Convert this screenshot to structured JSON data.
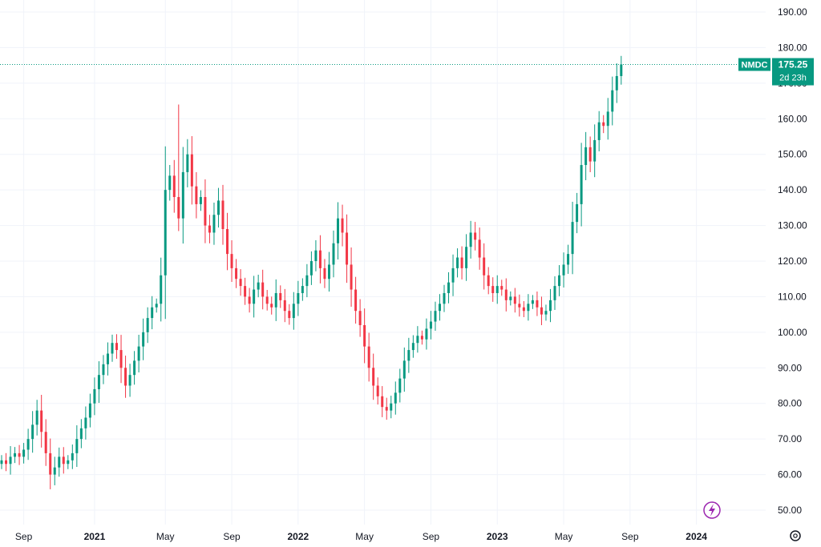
{
  "chart_data": {
    "type": "candlestick",
    "ylim": [
      45,
      195
    ],
    "y_ticks": [
      "190.00",
      "180.00",
      "170.00",
      "160.00",
      "150.00",
      "140.00",
      "130.00",
      "120.00",
      "110.00",
      "100.00",
      "90.00",
      "80.00",
      "70.00",
      "60.00",
      "50.00"
    ],
    "x_ticks": [
      {
        "label": "Sep",
        "bold": false,
        "bar": 5
      },
      {
        "label": "2021",
        "bold": true,
        "bar": 21
      },
      {
        "label": "May",
        "bold": false,
        "bar": 37
      },
      {
        "label": "Sep",
        "bold": false,
        "bar": 52
      },
      {
        "label": "2022",
        "bold": true,
        "bar": 67
      },
      {
        "label": "May",
        "bold": false,
        "bar": 82
      },
      {
        "label": "Sep",
        "bold": false,
        "bar": 97
      },
      {
        "label": "2023",
        "bold": true,
        "bar": 112
      },
      {
        "label": "May",
        "bold": false,
        "bar": 127
      },
      {
        "label": "Sep",
        "bold": false,
        "bar": 142
      },
      {
        "label": "2024",
        "bold": true,
        "bar": 157
      }
    ],
    "symbol_label": "NMDC",
    "last_price": "175.25",
    "countdown": "2d 23h",
    "up_color": "#089981",
    "down_color": "#f23645",
    "closes": [
      64,
      63,
      65,
      66,
      65,
      67,
      70,
      74,
      78,
      72,
      66,
      60,
      62,
      65,
      63,
      64,
      66,
      70,
      73,
      76,
      80,
      84,
      88,
      91,
      94,
      97,
      95,
      90,
      85,
      88,
      92,
      96,
      100,
      104,
      107,
      108,
      116,
      140,
      144,
      138,
      132,
      145,
      150,
      141,
      136,
      138,
      130,
      128,
      133,
      137,
      129,
      122,
      118,
      115,
      113,
      110,
      108,
      112,
      114,
      110,
      108,
      107,
      111,
      109,
      106,
      104,
      108,
      111,
      113,
      116,
      120,
      123,
      118,
      115,
      119,
      125,
      132,
      128,
      119,
      112,
      106,
      102,
      96,
      90,
      85,
      82,
      79,
      78,
      80,
      83,
      87,
      92,
      95,
      97,
      99,
      98,
      101,
      103,
      106,
      108,
      111,
      114,
      118,
      121,
      118,
      124,
      128,
      126,
      121,
      116,
      113,
      111,
      113,
      112,
      109,
      110,
      108,
      107,
      106,
      108,
      109,
      107,
      105,
      106,
      109,
      113,
      116,
      119,
      122,
      131,
      136,
      147,
      152,
      148,
      154,
      159,
      158,
      162,
      168,
      172,
      175.25
    ]
  }
}
